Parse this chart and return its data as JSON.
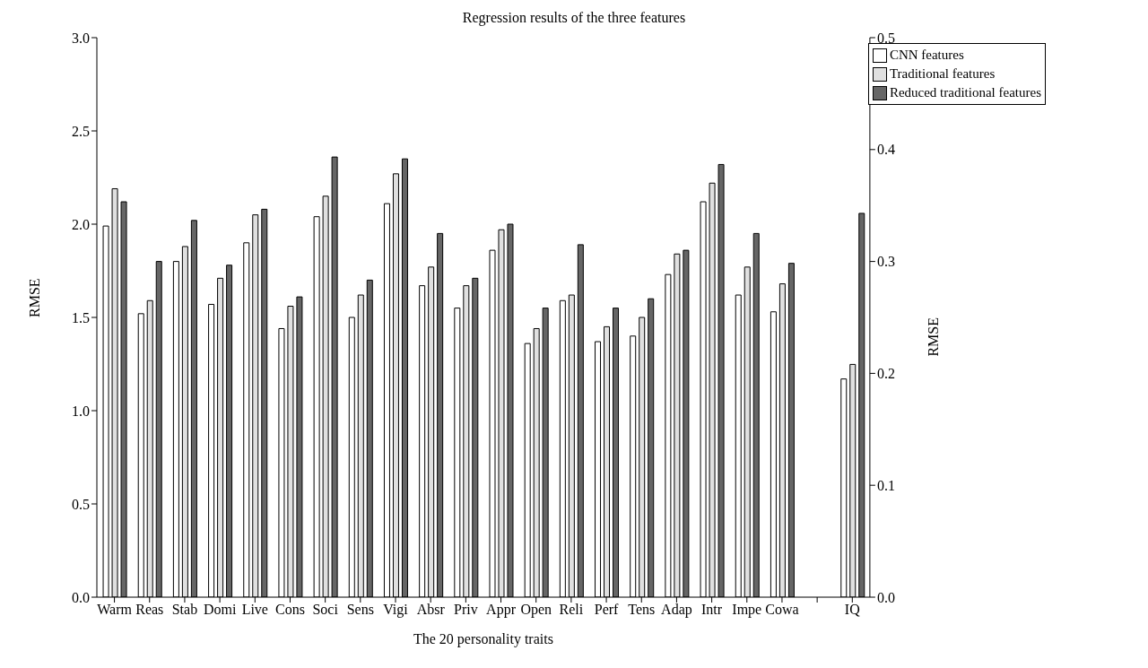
{
  "chart_data": {
    "type": "bar",
    "title": "Regression results of the three features",
    "xlabel": "The 20 personality traits",
    "ylabel": "RMSE",
    "y2label": "RMSE",
    "categories": [
      "Warm",
      "Reas",
      "Stab",
      "Domi",
      "Live",
      "Cons",
      "Soci",
      "Sens",
      "Vigi",
      "Absr",
      "Priv",
      "Appr",
      "Open",
      "Reli",
      "Perf",
      "Tens",
      "Adap",
      "Intr",
      "Impe",
      "Cowa",
      null,
      "IQ"
    ],
    "series": [
      {
        "name": "CNN features",
        "color": "#ffffff",
        "values": [
          1.99,
          1.52,
          1.8,
          1.57,
          1.9,
          1.44,
          2.04,
          1.5,
          2.11,
          1.67,
          1.55,
          1.86,
          1.36,
          1.59,
          1.37,
          1.4,
          1.73,
          2.12,
          1.62,
          1.53,
          null,
          null
        ]
      },
      {
        "name": "Traditional features",
        "color": "#e0e0e0",
        "values": [
          2.19,
          1.59,
          1.88,
          1.71,
          2.05,
          1.56,
          2.15,
          1.62,
          2.27,
          1.77,
          1.67,
          1.97,
          1.44,
          1.62,
          1.45,
          1.5,
          1.84,
          2.22,
          1.77,
          1.68,
          null,
          null
        ]
      },
      {
        "name": "Reduced traditional features",
        "color": "#666666",
        "values": [
          2.12,
          1.8,
          2.02,
          1.78,
          2.08,
          1.61,
          2.36,
          1.7,
          2.35,
          1.95,
          1.71,
          2.0,
          1.55,
          1.89,
          1.55,
          1.6,
          1.86,
          2.32,
          1.95,
          1.79,
          null,
          null
        ]
      },
      {
        "color": "#ffffff",
        "axis": "y2",
        "values": [
          null,
          null,
          null,
          null,
          null,
          null,
          null,
          null,
          null,
          null,
          null,
          null,
          null,
          null,
          null,
          null,
          null,
          null,
          null,
          null,
          null,
          0.195
        ]
      },
      {
        "color": "#e0e0e0",
        "axis": "y2",
        "values": [
          null,
          null,
          null,
          null,
          null,
          null,
          null,
          null,
          null,
          null,
          null,
          null,
          null,
          null,
          null,
          null,
          null,
          null,
          null,
          null,
          null,
          0.208
        ]
      },
      {
        "color": "#666666",
        "axis": "y2",
        "values": [
          null,
          null,
          null,
          null,
          null,
          null,
          null,
          null,
          null,
          null,
          null,
          null,
          null,
          null,
          null,
          null,
          null,
          null,
          null,
          null,
          null,
          0.343
        ]
      }
    ],
    "ylim": [
      0,
      3
    ],
    "yticks": [
      {
        "value": 0,
        "label": "0.0"
      },
      {
        "value": 0.5,
        "label": "0.5"
      },
      {
        "value": 1,
        "label": "1.0"
      },
      {
        "value": 1.5,
        "label": "1.5"
      },
      {
        "value": 2,
        "label": "2.0"
      },
      {
        "value": 2.5,
        "label": "2.5"
      },
      {
        "value": 3,
        "label": "3.0"
      }
    ],
    "y2lim": [
      0,
      0.5
    ],
    "y2ticks": [
      {
        "value": 0,
        "label": "0.0"
      },
      0.1,
      0.2,
      0.3,
      0.4,
      0.5
    ],
    "legend": "top right",
    "grid": false
  }
}
